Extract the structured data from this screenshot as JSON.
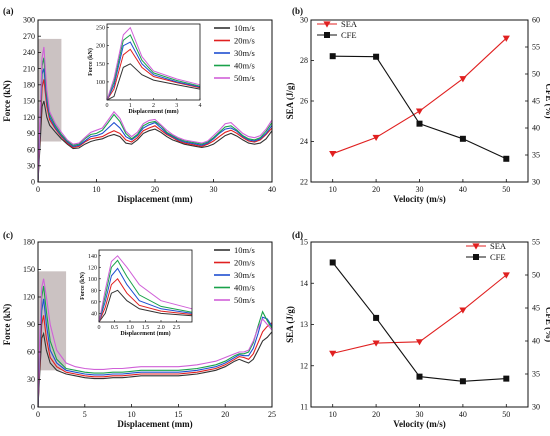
{
  "chart_data": [
    {
      "panel": "(a)",
      "type": "line",
      "xlabel": "Displacement (mm)",
      "ylabel": "Force (kN)",
      "xlim": [
        0,
        40
      ],
      "ylim": [
        0,
        300
      ],
      "xticks": [
        0,
        10,
        20,
        30,
        40
      ],
      "yticks": [
        0,
        30,
        60,
        90,
        120,
        150,
        180,
        210,
        240,
        270,
        300
      ],
      "legend_position": "top-right",
      "series": [
        {
          "name": "10m/s",
          "color": "#333333",
          "x": [
            0,
            0.3,
            0.7,
            1,
            1.5,
            2,
            3,
            4,
            5,
            6,
            7,
            8,
            9,
            10,
            11,
            12,
            13,
            14,
            15,
            16,
            17,
            18,
            19,
            20,
            21,
            22,
            23,
            24,
            25,
            26,
            27,
            28,
            29,
            30,
            31,
            32,
            33,
            34,
            35,
            36,
            37,
            38,
            39,
            40
          ],
          "y": [
            0,
            60,
            140,
            150,
            120,
            105,
            92,
            80,
            70,
            62,
            63,
            70,
            75,
            78,
            80,
            85,
            88,
            84,
            72,
            70,
            78,
            90,
            95,
            98,
            92,
            84,
            78,
            74,
            70,
            68,
            66,
            64,
            66,
            70,
            78,
            86,
            90,
            85,
            78,
            72,
            70,
            72,
            80,
            95
          ]
        },
        {
          "name": "20m/s",
          "color": "#e02020",
          "x": [
            0,
            0.3,
            0.7,
            1,
            1.5,
            2,
            3,
            4,
            5,
            6,
            7,
            8,
            9,
            10,
            11,
            12,
            13,
            14,
            15,
            16,
            17,
            18,
            19,
            20,
            21,
            22,
            23,
            24,
            25,
            26,
            27,
            28,
            29,
            30,
            31,
            32,
            33,
            34,
            35,
            36,
            37,
            38,
            39,
            40
          ],
          "y": [
            0,
            80,
            175,
            190,
            140,
            115,
            98,
            84,
            72,
            64,
            66,
            74,
            80,
            82,
            84,
            90,
            95,
            90,
            78,
            74,
            82,
            95,
            100,
            104,
            96,
            88,
            82,
            76,
            72,
            70,
            68,
            66,
            70,
            76,
            84,
            92,
            96,
            90,
            82,
            76,
            74,
            78,
            88,
            100
          ]
        },
        {
          "name": "30m/s",
          "color": "#1f4fd0",
          "x": [
            0,
            0.3,
            0.7,
            1,
            1.5,
            2,
            3,
            4,
            5,
            6,
            7,
            8,
            9,
            10,
            11,
            12,
            13,
            14,
            15,
            16,
            17,
            18,
            19,
            20,
            21,
            22,
            23,
            24,
            25,
            26,
            27,
            28,
            29,
            30,
            31,
            32,
            33,
            34,
            35,
            36,
            37,
            38,
            39,
            40
          ],
          "y": [
            0,
            90,
            200,
            210,
            150,
            120,
            100,
            86,
            74,
            66,
            68,
            76,
            84,
            86,
            90,
            100,
            110,
            100,
            84,
            78,
            86,
            100,
            106,
            110,
            100,
            90,
            84,
            78,
            74,
            72,
            70,
            68,
            72,
            80,
            90,
            98,
            100,
            94,
            84,
            78,
            76,
            80,
            90,
            105
          ]
        },
        {
          "name": "40m/s",
          "color": "#19a24a",
          "x": [
            0,
            0.3,
            0.7,
            1,
            1.5,
            2,
            3,
            4,
            5,
            6,
            7,
            8,
            9,
            10,
            11,
            12,
            13,
            14,
            15,
            16,
            17,
            18,
            19,
            20,
            21,
            22,
            23,
            24,
            25,
            26,
            27,
            28,
            29,
            30,
            31,
            32,
            33,
            34,
            35,
            36,
            37,
            38,
            39,
            40
          ],
          "y": [
            0,
            100,
            215,
            230,
            160,
            125,
            104,
            88,
            76,
            68,
            70,
            80,
            88,
            90,
            96,
            110,
            125,
            112,
            90,
            80,
            88,
            104,
            110,
            112,
            104,
            92,
            86,
            80,
            76,
            74,
            72,
            70,
            74,
            82,
            92,
            102,
            104,
            96,
            86,
            80,
            78,
            82,
            94,
            110
          ]
        },
        {
          "name": "50m/s",
          "color": "#d060d8",
          "x": [
            0,
            0.3,
            0.7,
            1,
            1.5,
            2,
            3,
            4,
            5,
            6,
            7,
            8,
            9,
            10,
            11,
            12,
            13,
            14,
            15,
            16,
            17,
            18,
            19,
            20,
            21,
            22,
            23,
            24,
            25,
            26,
            27,
            28,
            29,
            30,
            31,
            32,
            33,
            34,
            35,
            36,
            37,
            38,
            39,
            40
          ],
          "y": [
            0,
            110,
            230,
            250,
            170,
            130,
            108,
            92,
            78,
            70,
            72,
            82,
            92,
            96,
            100,
            115,
            130,
            118,
            94,
            84,
            92,
            108,
            114,
            116,
            106,
            96,
            88,
            82,
            78,
            76,
            74,
            72,
            76,
            86,
            96,
            108,
            110,
            100,
            90,
            84,
            82,
            86,
            98,
            115
          ]
        }
      ],
      "inset": {
        "xlabel": "Displacement (mm)",
        "ylabel": "Force (kN)",
        "xlim": [
          0,
          4
        ],
        "ylim": [
          50,
          260
        ],
        "xticks": [
          0,
          1,
          2,
          3,
          4
        ],
        "yticks": [
          100,
          150,
          200,
          250
        ]
      }
    },
    {
      "panel": "(b)",
      "type": "line",
      "xlabel": "Velocity (m/s)",
      "ylabel": "SEA (J/g)",
      "ylabel_right": "CFE (%)",
      "x": [
        10,
        20,
        30,
        40,
        50
      ],
      "xlim": [
        5,
        55
      ],
      "ylim": [
        22,
        30
      ],
      "ylim_right": [
        30,
        60
      ],
      "xticks": [
        10,
        20,
        30,
        40,
        50
      ],
      "yticks": [
        22,
        24,
        26,
        28,
        30
      ],
      "yticks_right": [
        30,
        35,
        40,
        45,
        50,
        55,
        60
      ],
      "legend_position": "top-left",
      "series": [
        {
          "name": "SEA",
          "axis": "left",
          "color": "#e02020",
          "marker": "triangle-down",
          "values": [
            23.4,
            24.2,
            25.5,
            27.1,
            29.1
          ]
        },
        {
          "name": "CFE",
          "axis": "right",
          "color": "#111111",
          "marker": "square",
          "values": [
            53.3,
            53.2,
            40.8,
            38.0,
            34.3
          ]
        }
      ]
    },
    {
      "panel": "(c)",
      "type": "line",
      "xlabel": "Displacement (mm)",
      "ylabel": "Force (kN)",
      "xlim": [
        0,
        25
      ],
      "ylim": [
        0,
        180
      ],
      "xticks": [
        0,
        5,
        10,
        15,
        20,
        25
      ],
      "yticks": [
        0,
        30,
        60,
        90,
        120,
        150,
        180
      ],
      "legend_position": "top-right",
      "series": [
        {
          "name": "10m/s",
          "color": "#333333",
          "x": [
            0,
            0.2,
            0.4,
            0.6,
            0.9,
            1.3,
            2,
            3,
            4,
            5,
            6,
            7,
            8,
            9,
            10,
            11,
            12,
            13,
            14,
            15,
            16,
            17,
            18,
            19,
            20,
            21,
            21.5,
            22,
            22.5,
            23,
            23.5,
            24,
            24.5,
            25
          ],
          "y": [
            0,
            40,
            75,
            80,
            62,
            48,
            40,
            36,
            34,
            32,
            31,
            31,
            32,
            32,
            33,
            34,
            34,
            34,
            34,
            34,
            35,
            36,
            38,
            40,
            44,
            50,
            52,
            50,
            48,
            52,
            62,
            72,
            76,
            82
          ]
        },
        {
          "name": "20m/s",
          "color": "#e02020",
          "x": [
            0,
            0.2,
            0.4,
            0.6,
            0.9,
            1.3,
            2,
            3,
            4,
            5,
            6,
            7,
            8,
            9,
            10,
            11,
            12,
            13,
            14,
            15,
            16,
            17,
            18,
            19,
            20,
            21,
            21.5,
            22,
            22.5,
            23,
            23.5,
            24,
            24.5,
            25
          ],
          "y": [
            0,
            50,
            90,
            100,
            75,
            54,
            44,
            38,
            36,
            34,
            33,
            33,
            34,
            34,
            35,
            36,
            36,
            36,
            36,
            36,
            37,
            38,
            40,
            42,
            46,
            52,
            55,
            54,
            52,
            58,
            70,
            82,
            88,
            92
          ]
        },
        {
          "name": "30m/s",
          "color": "#1f4fd0",
          "x": [
            0,
            0.2,
            0.4,
            0.6,
            0.9,
            1.3,
            2,
            3,
            4,
            5,
            6,
            7,
            8,
            9,
            10,
            11,
            12,
            13,
            14,
            15,
            16,
            17,
            18,
            19,
            20,
            21,
            21.5,
            22,
            22.5,
            23,
            23.5,
            24,
            24.5,
            25
          ],
          "y": [
            0,
            60,
            105,
            118,
            90,
            62,
            48,
            40,
            38,
            36,
            35,
            35,
            36,
            36,
            37,
            38,
            38,
            38,
            38,
            38,
            39,
            40,
            42,
            44,
            48,
            54,
            57,
            56,
            56,
            64,
            80,
            98,
            96,
            88
          ]
        },
        {
          "name": "40m/s",
          "color": "#19a24a",
          "x": [
            0,
            0.2,
            0.4,
            0.6,
            0.9,
            1.3,
            2,
            3,
            4,
            5,
            6,
            7,
            8,
            9,
            10,
            11,
            12,
            13,
            14,
            15,
            16,
            17,
            18,
            19,
            20,
            21,
            21.5,
            22,
            22.5,
            23,
            23.5,
            24,
            24.5,
            25
          ],
          "y": [
            0,
            70,
            120,
            132,
            104,
            72,
            52,
            42,
            40,
            38,
            37,
            37,
            38,
            38,
            39,
            40,
            40,
            40,
            40,
            40,
            41,
            42,
            44,
            46,
            50,
            56,
            58,
            58,
            60,
            70,
            88,
            104,
            94,
            86
          ]
        },
        {
          "name": "50m/s",
          "color": "#d060d8",
          "x": [
            0,
            0.2,
            0.4,
            0.6,
            0.9,
            1.3,
            2,
            3,
            4,
            5,
            6,
            7,
            8,
            9,
            10,
            11,
            12,
            13,
            14,
            15,
            16,
            17,
            18,
            19,
            20,
            21,
            21.5,
            22,
            22.5,
            23,
            23.5,
            24,
            24.5,
            25
          ],
          "y": [
            0,
            80,
            130,
            140,
            120,
            90,
            62,
            48,
            44,
            42,
            41,
            41,
            42,
            42,
            43,
            44,
            44,
            44,
            44,
            44,
            45,
            46,
            48,
            50,
            54,
            58,
            60,
            60,
            62,
            72,
            86,
            96,
            90,
            84
          ]
        }
      ],
      "inset": {
        "xlabel": "Displacement (mm)",
        "ylabel": "Force (kN)",
        "xlim": [
          0,
          3.0
        ],
        "ylim": [
          25,
          150
        ],
        "xticks": [
          0,
          0.5,
          1.0,
          1.5,
          2.0,
          2.5
        ],
        "yticks": [
          40,
          60,
          80,
          100,
          120,
          140
        ]
      }
    },
    {
      "panel": "(d)",
      "type": "line",
      "xlabel": "Velocity (m/s)",
      "ylabel": "SEA (J/g)",
      "ylabel_right": "CFE (%)",
      "x": [
        10,
        20,
        30,
        40,
        50
      ],
      "xlim": [
        5,
        55
      ],
      "ylim": [
        11,
        15
      ],
      "ylim_right": [
        30,
        55
      ],
      "xticks": [
        10,
        20,
        30,
        40,
        50
      ],
      "yticks": [
        11,
        12,
        13,
        14,
        15
      ],
      "yticks_right": [
        30,
        35,
        40,
        45,
        50,
        55
      ],
      "legend_position": "top-right",
      "series": [
        {
          "name": "SEA",
          "axis": "left",
          "color": "#e02020",
          "marker": "triangle-down",
          "values": [
            12.3,
            12.55,
            12.58,
            13.35,
            14.2
          ]
        },
        {
          "name": "CFE",
          "axis": "right",
          "color": "#111111",
          "marker": "square",
          "values": [
            51.9,
            43.5,
            34.6,
            33.9,
            34.3
          ]
        }
      ]
    }
  ]
}
